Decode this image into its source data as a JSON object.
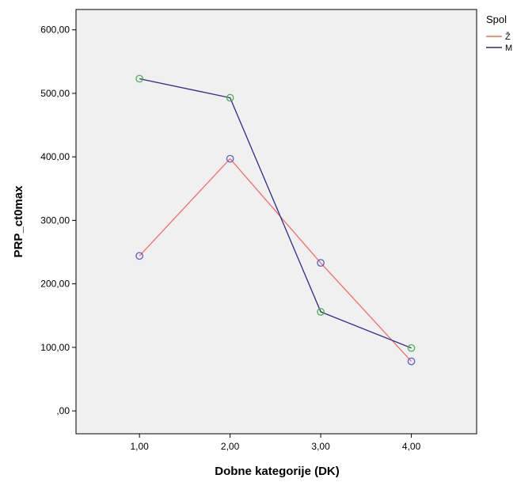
{
  "chart_data": {
    "type": "line",
    "title": "",
    "xlabel": "Dobne kategorije (DK)",
    "ylabel": "PRP_ct0max",
    "x": [
      1,
      2,
      3,
      4
    ],
    "xticks": [
      "1,00",
      "2,00",
      "3,00",
      "4,00"
    ],
    "xlim": [
      0.3,
      4.72
    ],
    "yticks": [
      "600,00",
      "500,00",
      "400,00",
      "300,00",
      "200,00",
      "100,00",
      ",00"
    ],
    "ytick_values": [
      600,
      500,
      400,
      300,
      200,
      100,
      0
    ],
    "ylim": [
      -36,
      632
    ],
    "grid": false,
    "legend": {
      "title": "Spol",
      "placement": "top-right"
    },
    "series": [
      {
        "name": "Ž",
        "values": [
          244,
          397,
          233,
          78
        ],
        "color": "#f26b6b",
        "marker_color": "#5a5ec8"
      },
      {
        "name": "M",
        "values": [
          523,
          493,
          156,
          99
        ],
        "color": "#2b2b8a",
        "marker_color": "#45b545"
      }
    ],
    "plot_background": "#f0f0f0"
  }
}
